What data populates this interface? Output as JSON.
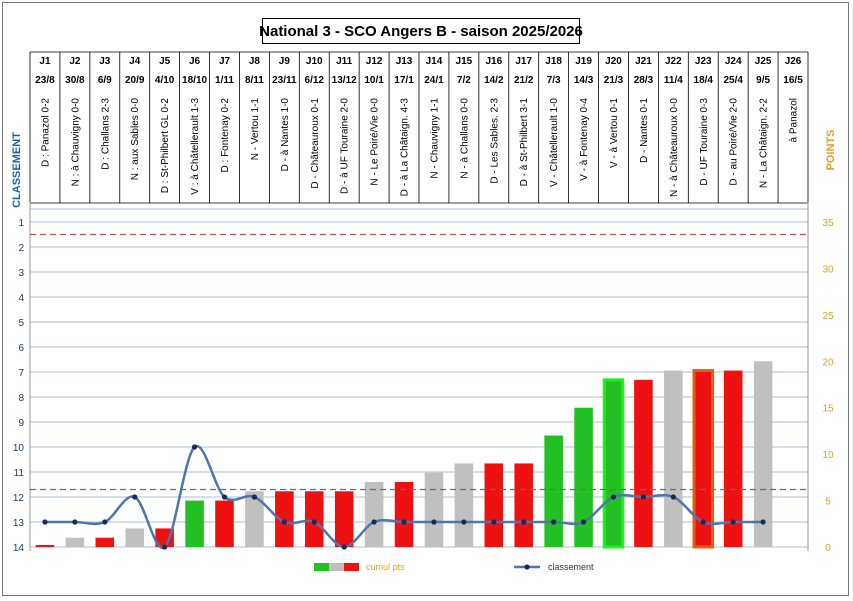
{
  "page": {
    "title": "National 3 - SCO Angers B - saison 2025/2026"
  },
  "chart_data": {
    "type": "bar",
    "title": "National 3 - SCO Angers B - saison 2025/2026",
    "ylabel_left": "CLASSEMENT",
    "ylabel_right": "POINTS",
    "left_axis": {
      "range": [
        1,
        14
      ],
      "ticks": [
        "1",
        "2",
        "3",
        "4",
        "5",
        "6",
        "7",
        "8",
        "9",
        "10",
        "11",
        "12",
        "13",
        "14"
      ]
    },
    "right_axis": {
      "range": [
        0,
        35
      ],
      "ticks": [
        "0",
        "5",
        "10",
        "15",
        "20",
        "25",
        "30",
        "35"
      ]
    },
    "categories": [
      "J1",
      "J2",
      "J3",
      "J4",
      "J5",
      "J6",
      "J7",
      "J8",
      "J9",
      "J10",
      "J11",
      "J12",
      "J13",
      "J14",
      "J15",
      "J16",
      "J17",
      "J18",
      "J19",
      "J20",
      "J21",
      "J22",
      "J23",
      "J24",
      "J25",
      "J26"
    ],
    "dates": [
      "23/8",
      "30/8",
      "6/9",
      "20/9",
      "4/10",
      "18/10",
      "1/11",
      "8/11",
      "23/11",
      "6/12",
      "13/12",
      "10/1",
      "17/1",
      "24/1",
      "7/2",
      "14/2",
      "21/2",
      "7/3",
      "14/3",
      "21/3",
      "28/3",
      "11/4",
      "18/4",
      "25/4",
      "9/5",
      "16/5"
    ],
    "matches": [
      "D : Panazol 0-2",
      "N : à Chauvigny 0-0",
      "D : Challans 2-3",
      "N : aux Sables 0-0",
      "D : St-Philbert GL 0-2",
      "V : à Châtellerault 1-3",
      "D : Fontenay 0-2",
      "N - Vertou 1-1",
      "D - à Nantes 1-0",
      "D - Châteauroux 0-1",
      "D - à UF Touraine 2-0",
      "N - Le Poiré/Vie 0-0",
      "D - à La Châtaign. 4-3",
      "N - Chauvigny 1-1",
      "N - à Challans 0-0",
      "D - Les Sables. 2-3",
      "D - à St-Philbert 3-1",
      "V - Châtellerault 1-0",
      "V - à Fontenay 0-4",
      "V - à Vertou 0-1",
      "D - Nantes 0-1",
      "N - à Châteauroux 0-0",
      "D - UF Touraine 0-3",
      "D - au Poiré/Vie 2-0",
      "N - La Châtaign. 2-2",
      "à Panazol"
    ],
    "series": [
      {
        "name": "cumul pts",
        "kind": "bar",
        "axis": "right",
        "values": [
          0,
          1,
          1,
          2,
          2,
          5,
          5,
          6,
          6,
          6,
          6,
          7,
          7,
          8,
          9,
          9,
          9,
          12,
          15,
          18,
          18,
          19,
          19,
          19,
          20,
          null
        ],
        "results": [
          "D",
          "N",
          "D",
          "N",
          "D",
          "V",
          "D",
          "N",
          "D",
          "D",
          "D",
          "N",
          "D",
          "N",
          "N",
          "D",
          "D",
          "V",
          "V",
          "V",
          "D",
          "N",
          "D",
          "D",
          "N",
          ""
        ]
      },
      {
        "name": "classement",
        "kind": "line",
        "axis": "left",
        "values": [
          13,
          13,
          13,
          12,
          14,
          10,
          12,
          12,
          13,
          13,
          14,
          13,
          13,
          13,
          13,
          13,
          13,
          13,
          13,
          12,
          12,
          12,
          13,
          13,
          13,
          null
        ]
      }
    ],
    "reference_lines": [
      {
        "axis": "left",
        "value": 1.5,
        "style": "dashed",
        "color": "#c0504d"
      },
      {
        "axis": "left",
        "value": 11.7,
        "style": "dashed",
        "color": "#4f6fa8"
      }
    ],
    "colors": {
      "V": "#22c022",
      "N": "#c0c0c0",
      "D": "#ee1111",
      "line": "#4f74b0",
      "marker": "#1a2a55",
      "grid": "#8eaacc",
      "left_axis_label": "#1f5fa8",
      "right_axis_label": "#e6a020",
      "right_tick": "#e6a020",
      "left_tick": "#1a3a7a"
    },
    "highlighted_bars": [
      {
        "index": 19,
        "border": "#22ee22"
      },
      {
        "index": 22,
        "border": "#e06010"
      }
    ],
    "grid": true,
    "legend": {
      "position": "bottom",
      "items": [
        "cumul pts",
        "classement"
      ]
    }
  }
}
